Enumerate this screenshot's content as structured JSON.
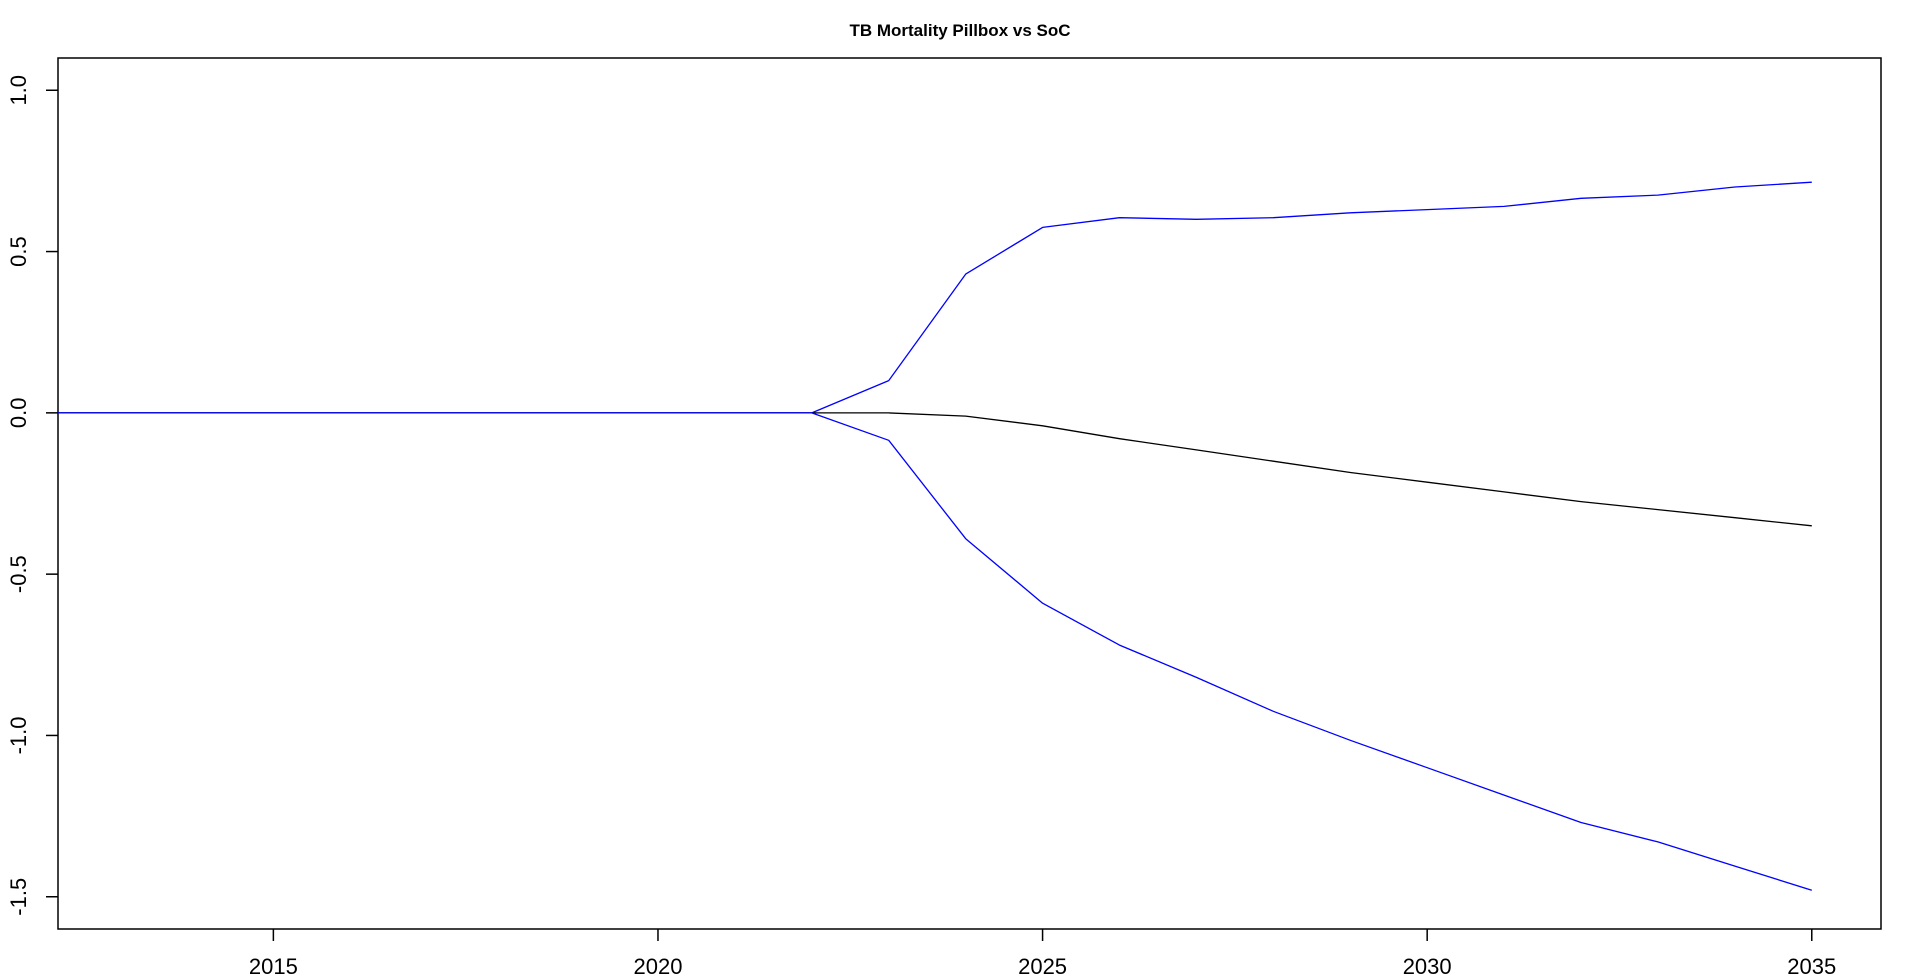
{
  "chart_data": {
    "type": "line",
    "title": "TB Mortality Pillbox vs SoC",
    "xlabel": "",
    "ylabel": "",
    "xlim": [
      2012.2,
      2035.9
    ],
    "ylim": [
      -1.6,
      1.1
    ],
    "x_ticks": [
      2015,
      2020,
      2025,
      2030,
      2035
    ],
    "y_ticks": [
      -1.5,
      -1.0,
      -0.5,
      0.0,
      0.5,
      1.0
    ],
    "x_tick_labels": [
      "2015",
      "2020",
      "2025",
      "2030",
      "2035"
    ],
    "y_tick_labels": [
      "-1.5",
      "-1.0",
      "-0.5",
      "0.0",
      "0.5",
      "1.0"
    ],
    "grid": false,
    "legend": "none",
    "series": [
      {
        "color": "#0000ff",
        "x": [
          2012.2,
          2013,
          2014,
          2015,
          2016,
          2017,
          2018,
          2019,
          2020,
          2021,
          2022,
          2023,
          2024,
          2025,
          2026,
          2027,
          2028,
          2029,
          2030,
          2031,
          2032,
          2033,
          2034,
          2035
        ],
        "y": [
          0,
          0,
          0,
          0,
          0,
          0,
          0,
          0,
          0,
          0,
          0,
          0.1,
          0.43,
          0.575,
          0.605,
          0.6,
          0.605,
          0.62,
          0.63,
          0.64,
          0.665,
          0.675,
          0.7,
          0.715
        ]
      },
      {
        "color": "#000000",
        "x": [
          2012.2,
          2013,
          2014,
          2015,
          2016,
          2017,
          2018,
          2019,
          2020,
          2021,
          2022,
          2023,
          2024,
          2025,
          2026,
          2027,
          2028,
          2029,
          2030,
          2031,
          2032,
          2033,
          2034,
          2035
        ],
        "y": [
          0,
          0,
          0,
          0,
          0,
          0,
          0,
          0,
          0,
          0,
          0,
          0,
          -0.01,
          -0.04,
          -0.08,
          -0.115,
          -0.15,
          -0.185,
          -0.215,
          -0.245,
          -0.275,
          -0.3,
          -0.325,
          -0.35
        ]
      },
      {
        "color": "#0000ff",
        "x": [
          2012.2,
          2013,
          2014,
          2015,
          2016,
          2017,
          2018,
          2019,
          2020,
          2021,
          2022,
          2023,
          2024,
          2025,
          2026,
          2027,
          2028,
          2029,
          2030,
          2031,
          2032,
          2033,
          2034,
          2035
        ],
        "y": [
          0,
          0,
          0,
          0,
          0,
          0,
          0,
          0,
          0,
          0,
          0,
          -0.085,
          -0.39,
          -0.59,
          -0.72,
          -0.82,
          -0.925,
          -1.015,
          -1.1,
          -1.185,
          -1.27,
          -1.33,
          -1.405,
          -1.48
        ]
      }
    ]
  }
}
